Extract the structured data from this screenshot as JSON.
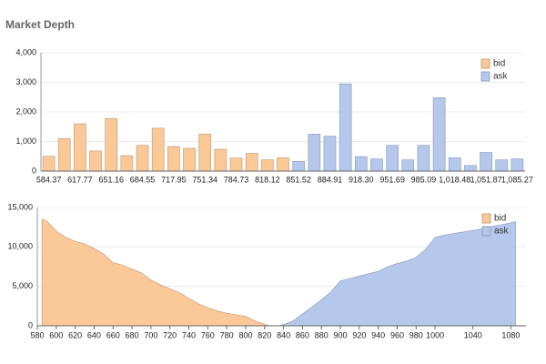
{
  "chart_data": [
    {
      "type": "bar",
      "title": "Market Depth",
      "categories": [
        "584.37",
        null,
        "617.77",
        null,
        "651.16",
        null,
        "684.55",
        null,
        "717.95",
        null,
        "751.34",
        null,
        "784.73",
        null,
        "818.12",
        null,
        "851.52",
        null,
        "884.91",
        null,
        "918.30",
        null,
        "951.69",
        null,
        "985.09",
        null,
        "1,018.48",
        null,
        "1,051.87",
        null,
        "1,085.27"
      ],
      "series": [
        {
          "name": "bid",
          "color": "#fbc898",
          "values": [
            500,
            1100,
            1600,
            680,
            1780,
            520,
            870,
            1450,
            830,
            770,
            1250,
            740,
            440,
            600,
            380,
            450,
            null,
            null,
            null,
            null,
            null,
            null,
            null,
            null,
            null,
            null,
            null,
            null,
            null,
            null,
            null
          ]
        },
        {
          "name": "ask",
          "color": "#b5c8ec",
          "values": [
            null,
            null,
            null,
            null,
            null,
            null,
            null,
            null,
            null,
            null,
            null,
            null,
            null,
            null,
            null,
            null,
            330,
            1250,
            1180,
            2950,
            490,
            410,
            870,
            380,
            870,
            2480,
            450,
            190,
            630,
            380,
            410
          ]
        }
      ],
      "ylim": [
        0,
        4000
      ],
      "yticks": [
        0,
        {
          "value": 1000,
          "label": "1,000"
        },
        {
          "value": 2000,
          "label": "2,000"
        },
        {
          "value": 3000,
          "label": "3,000"
        },
        {
          "value": 4000,
          "label": "4,000"
        }
      ],
      "grid": true,
      "legend": "top-right"
    },
    {
      "type": "area",
      "series": [
        {
          "name": "bid",
          "color": "#fbc898",
          "x": [
            585,
            590,
            600,
            610,
            620,
            630,
            640,
            650,
            660,
            670,
            680,
            690,
            700,
            710,
            720,
            730,
            740,
            750,
            760,
            770,
            780,
            790,
            800,
            810,
            820,
            825
          ],
          "values": [
            13500,
            13300,
            12000,
            11200,
            10700,
            10400,
            9800,
            9100,
            8000,
            7700,
            7200,
            6700,
            5800,
            5200,
            4700,
            4200,
            3500,
            2800,
            2300,
            1900,
            1600,
            1400,
            1200,
            600,
            200,
            0
          ]
        },
        {
          "name": "ask",
          "color": "#b5c8ec",
          "x": [
            835,
            840,
            850,
            860,
            870,
            880,
            890,
            900,
            910,
            920,
            930,
            940,
            950,
            960,
            970,
            980,
            990,
            1000,
            1010,
            1020,
            1030,
            1040,
            1050,
            1060,
            1070,
            1085
          ],
          "values": [
            0,
            150,
            600,
            1500,
            2400,
            3300,
            4300,
            5700,
            6000,
            6300,
            6600,
            6900,
            7500,
            7900,
            8200,
            8700,
            9700,
            11200,
            11500,
            11700,
            11900,
            12100,
            12300,
            12600,
            12800,
            13200
          ]
        }
      ],
      "xlim": [
        580,
        1096
      ],
      "xticks": [
        580,
        600,
        620,
        640,
        660,
        680,
        700,
        720,
        740,
        760,
        780,
        800,
        820,
        840,
        860,
        880,
        900,
        920,
        940,
        960,
        980,
        1000,
        1040,
        1080
      ],
      "ylim": [
        0,
        15000
      ],
      "yticks": [
        0,
        {
          "value": 5000,
          "label": "5,000"
        },
        {
          "value": 10000,
          "label": "10,000"
        },
        {
          "value": 15000,
          "label": "15,000"
        }
      ],
      "grid": true,
      "legend": "top-right"
    }
  ]
}
